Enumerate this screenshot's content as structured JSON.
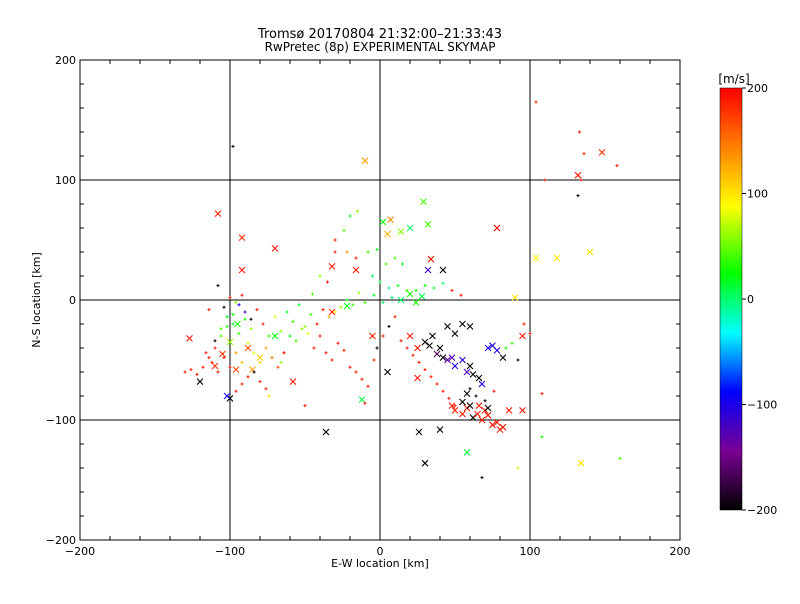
{
  "chart_data": {
    "type": "scatter",
    "title": "Tromsø 20170804 21:32:00–21:33:43",
    "subtitle": "RwPretec (8p) EXPERIMENTAL SKYMAP",
    "xlabel": "E-W location [km]",
    "ylabel": "N-S location [km]",
    "xlim": [
      -200,
      200
    ],
    "ylim": [
      -200,
      200
    ],
    "xticks": [
      -200,
      -100,
      0,
      100,
      200
    ],
    "yticks": [
      -200,
      -100,
      0,
      100,
      200
    ],
    "xtick_labels": [
      "−200",
      "−100",
      "0",
      "100",
      "200"
    ],
    "ytick_labels": [
      "−200",
      "−100",
      "0",
      "100",
      "200"
    ],
    "grid_lines": [
      -100,
      0,
      100
    ],
    "colorbar": {
      "label": "[m/s]",
      "range": [
        -200,
        200
      ],
      "ticks": [
        200,
        100,
        0,
        -100,
        -200
      ],
      "tick_labels": [
        "200",
        "100",
        "0",
        "−100",
        "−200"
      ],
      "colors": [
        "#000000",
        "#7a0094",
        "#0000ff",
        "#00ffff",
        "#00ff00",
        "#ffff00",
        "#ff8000",
        "#ff0000"
      ]
    },
    "series": [
      {
        "marker": "x",
        "points": [
          [
            -10,
            116,
            130
          ],
          [
            -108,
            72,
            190
          ],
          [
            -70,
            43,
            190
          ],
          [
            -92,
            52,
            180
          ],
          [
            -92,
            25,
            190
          ],
          [
            7,
            67,
            140
          ],
          [
            5,
            55,
            120
          ],
          [
            14,
            57,
            60
          ],
          [
            29,
            82,
            40
          ],
          [
            32,
            63,
            40
          ],
          [
            20,
            60,
            0
          ],
          [
            2,
            65,
            20
          ],
          [
            78,
            60,
            200
          ],
          [
            148,
            123,
            180
          ],
          [
            132,
            104,
            190
          ],
          [
            -120,
            -68,
            -200
          ],
          [
            -127,
            -32,
            190
          ],
          [
            -100,
            -82,
            -200
          ],
          [
            -102,
            -80,
            -100
          ],
          [
            -88,
            -40,
            170
          ],
          [
            -80,
            -48,
            110
          ],
          [
            -85,
            -58,
            130
          ],
          [
            -96,
            -58,
            170
          ],
          [
            -100,
            -35,
            60
          ],
          [
            -95,
            -20,
            30
          ],
          [
            -110,
            -55,
            180
          ],
          [
            -105,
            -45,
            180
          ],
          [
            -58,
            -68,
            190
          ],
          [
            -70,
            -30,
            20
          ],
          [
            -36,
            -110,
            -200
          ],
          [
            -12,
            -83,
            10
          ],
          [
            -5,
            -30,
            190
          ],
          [
            -22,
            -5,
            20
          ],
          [
            -32,
            -10,
            190
          ],
          [
            5,
            -60,
            -200
          ],
          [
            26,
            -110,
            -200
          ],
          [
            40,
            -108,
            -200
          ],
          [
            30,
            -136,
            -200
          ],
          [
            58,
            -127,
            10
          ],
          [
            134,
            -136,
            100
          ],
          [
            140,
            40,
            100
          ],
          [
            118,
            35,
            100
          ],
          [
            104,
            35,
            90
          ],
          [
            20,
            -30,
            190
          ],
          [
            25,
            -40,
            190
          ],
          [
            30,
            -35,
            -200
          ],
          [
            33,
            -38,
            -200
          ],
          [
            35,
            -30,
            -200
          ],
          [
            38,
            -45,
            -170
          ],
          [
            40,
            -40,
            -200
          ],
          [
            42,
            -48,
            -200
          ],
          [
            45,
            -50,
            -130
          ],
          [
            48,
            -48,
            -130
          ],
          [
            50,
            -55,
            -100
          ],
          [
            55,
            -50,
            -100
          ],
          [
            58,
            -60,
            -120
          ],
          [
            60,
            -55,
            -200
          ],
          [
            62,
            -62,
            -200
          ],
          [
            66,
            -65,
            -200
          ],
          [
            68,
            -70,
            -100
          ],
          [
            72,
            -40,
            -100
          ],
          [
            75,
            -38,
            -100
          ],
          [
            78,
            -42,
            -100
          ],
          [
            82,
            -48,
            -200
          ],
          [
            45,
            -22,
            -200
          ],
          [
            50,
            -28,
            -200
          ],
          [
            55,
            -20,
            -200
          ],
          [
            60,
            -22,
            -200
          ],
          [
            50,
            -92,
            190
          ],
          [
            55,
            -95,
            190
          ],
          [
            58,
            -90,
            190
          ],
          [
            62,
            -98,
            -200
          ],
          [
            65,
            -95,
            190
          ],
          [
            68,
            -100,
            190
          ],
          [
            70,
            -92,
            190
          ],
          [
            72,
            -96,
            190
          ],
          [
            75,
            -104,
            190
          ],
          [
            78,
            -102,
            190
          ],
          [
            80,
            -108,
            190
          ],
          [
            82,
            -106,
            190
          ],
          [
            66,
            -88,
            190
          ],
          [
            48,
            -88,
            190
          ],
          [
            55,
            -85,
            -200
          ],
          [
            72,
            -90,
            -200
          ],
          [
            86,
            -92,
            190
          ],
          [
            95,
            -92,
            190
          ],
          [
            60,
            -88,
            -200
          ],
          [
            58,
            -78,
            -200
          ],
          [
            95,
            -30,
            190
          ],
          [
            25,
            -65,
            190
          ],
          [
            90,
            2,
            100
          ],
          [
            42,
            25,
            -200
          ],
          [
            32,
            25,
            -120
          ],
          [
            34,
            34,
            190
          ],
          [
            14,
            0,
            0
          ],
          [
            28,
            3,
            10
          ],
          [
            20,
            5,
            30
          ],
          [
            24,
            -2,
            30
          ],
          [
            -16,
            25,
            190
          ],
          [
            -32,
            28,
            190
          ]
        ]
      },
      {
        "marker": "dot",
        "points": [
          [
            104,
            165,
            190
          ],
          [
            133,
            140,
            190
          ],
          [
            136,
            122,
            190
          ],
          [
            158,
            112,
            190
          ],
          [
            110,
            100,
            190
          ],
          [
            134,
            100,
            190
          ],
          [
            132,
            87,
            -200
          ],
          [
            -98,
            128,
            -200
          ],
          [
            -108,
            12,
            -200
          ],
          [
            -20,
            70,
            20
          ],
          [
            -15,
            74,
            60
          ],
          [
            -24,
            58,
            40
          ],
          [
            -30,
            50,
            190
          ],
          [
            -22,
            40,
            130
          ],
          [
            -16,
            35,
            190
          ],
          [
            -30,
            40,
            190
          ],
          [
            -45,
            5,
            40
          ],
          [
            -40,
            20,
            60
          ],
          [
            -35,
            15,
            190
          ],
          [
            -8,
            40,
            40
          ],
          [
            -2,
            42,
            20
          ],
          [
            4,
            30,
            40
          ],
          [
            10,
            35,
            40
          ],
          [
            15,
            30,
            20
          ],
          [
            -5,
            20,
            0
          ],
          [
            0,
            15,
            10
          ],
          [
            6,
            10,
            0
          ],
          [
            12,
            12,
            20
          ],
          [
            18,
            8,
            40
          ],
          [
            24,
            8,
            30
          ],
          [
            30,
            12,
            20
          ],
          [
            36,
            10,
            10
          ],
          [
            42,
            14,
            0
          ],
          [
            48,
            8,
            190
          ],
          [
            54,
            4,
            190
          ],
          [
            8,
            2,
            0
          ],
          [
            2,
            -2,
            0
          ],
          [
            -4,
            4,
            20
          ],
          [
            -10,
            -2,
            40
          ],
          [
            -14,
            6,
            60
          ],
          [
            -18,
            -4,
            40
          ],
          [
            -22,
            0,
            20
          ],
          [
            -26,
            -6,
            60
          ],
          [
            -30,
            -10,
            80
          ],
          [
            -34,
            -14,
            120
          ],
          [
            -38,
            -8,
            190
          ],
          [
            -42,
            -20,
            190
          ],
          [
            -46,
            -12,
            40
          ],
          [
            -50,
            -22,
            60
          ],
          [
            -54,
            -4,
            20
          ],
          [
            -58,
            -18,
            40
          ],
          [
            -62,
            -10,
            20
          ],
          [
            -66,
            -26,
            60
          ],
          [
            -70,
            -14,
            80
          ],
          [
            -74,
            -30,
            40
          ],
          [
            -78,
            -20,
            190
          ],
          [
            -82,
            -8,
            190
          ],
          [
            -86,
            -24,
            60
          ],
          [
            -90,
            -16,
            30
          ],
          [
            -94,
            -28,
            40
          ],
          [
            -98,
            -12,
            20
          ],
          [
            -102,
            -22,
            30
          ],
          [
            -106,
            -30,
            40
          ],
          [
            -110,
            -40,
            190
          ],
          [
            -114,
            -48,
            190
          ],
          [
            -118,
            -56,
            190
          ],
          [
            -122,
            -62,
            190
          ],
          [
            -126,
            -58,
            190
          ],
          [
            -130,
            -60,
            190
          ],
          [
            -116,
            -44,
            190
          ],
          [
            -112,
            -52,
            190
          ],
          [
            -108,
            -60,
            190
          ],
          [
            -104,
            -48,
            190
          ],
          [
            -100,
            -56,
            190
          ],
          [
            -96,
            -44,
            130
          ],
          [
            -92,
            -52,
            120
          ],
          [
            -88,
            -36,
            100
          ],
          [
            -84,
            -44,
            80
          ],
          [
            -80,
            -52,
            110
          ],
          [
            -76,
            -40,
            130
          ],
          [
            -72,
            -48,
            150
          ],
          [
            -68,
            -56,
            170
          ],
          [
            -64,
            -44,
            190
          ],
          [
            -88,
            -64,
            190
          ],
          [
            -92,
            -70,
            190
          ],
          [
            -96,
            -76,
            190
          ],
          [
            -84,
            -60,
            -200
          ],
          [
            -80,
            -68,
            190
          ],
          [
            -76,
            -74,
            190
          ],
          [
            -104,
            -6,
            -200
          ],
          [
            -100,
            2,
            190
          ],
          [
            -96,
            -2,
            60
          ],
          [
            -92,
            4,
            190
          ],
          [
            -44,
            -40,
            190
          ],
          [
            -40,
            -30,
            190
          ],
          [
            -36,
            -44,
            190
          ],
          [
            -32,
            -50,
            190
          ],
          [
            -28,
            -36,
            190
          ],
          [
            -24,
            -42,
            190
          ],
          [
            -20,
            -56,
            190
          ],
          [
            -16,
            -60,
            190
          ],
          [
            -12,
            -66,
            190
          ],
          [
            -8,
            -72,
            190
          ],
          [
            -4,
            -50,
            190
          ],
          [
            -2,
            -40,
            -200
          ],
          [
            2,
            -30,
            190
          ],
          [
            6,
            -22,
            -200
          ],
          [
            10,
            -14,
            190
          ],
          [
            14,
            -34,
            190
          ],
          [
            18,
            -40,
            190
          ],
          [
            22,
            -46,
            190
          ],
          [
            26,
            -52,
            190
          ],
          [
            30,
            -58,
            190
          ],
          [
            34,
            -64,
            190
          ],
          [
            38,
            -70,
            190
          ],
          [
            42,
            -76,
            190
          ],
          [
            46,
            -82,
            190
          ],
          [
            50,
            -88,
            190
          ],
          [
            60,
            -74,
            -200
          ],
          [
            64,
            -80,
            -200
          ],
          [
            70,
            -84,
            -200
          ],
          [
            76,
            -76,
            190
          ],
          [
            84,
            -40,
            20
          ],
          [
            88,
            -36,
            40
          ],
          [
            92,
            -50,
            -200
          ],
          [
            96,
            -20,
            190
          ],
          [
            100,
            -28,
            190
          ],
          [
            108,
            -78,
            190
          ],
          [
            108,
            -114,
            30
          ],
          [
            160,
            -132,
            40
          ],
          [
            92,
            -140,
            80
          ],
          [
            68,
            -148,
            -200
          ],
          [
            -10,
            -86,
            190
          ],
          [
            -50,
            -88,
            190
          ],
          [
            -64,
            -44,
            190
          ],
          [
            -60,
            -30,
            20
          ],
          [
            -56,
            -34,
            40
          ],
          [
            -52,
            -24,
            60
          ],
          [
            -48,
            -28,
            80
          ],
          [
            -66,
            -52,
            60
          ],
          [
            -74,
            -80,
            100
          ],
          [
            -86,
            -16,
            -200
          ],
          [
            -90,
            -10,
            -120
          ],
          [
            -94,
            -4,
            -100
          ],
          [
            -98,
            -20,
            10
          ],
          [
            -102,
            -14,
            20
          ],
          [
            -106,
            -24,
            40
          ],
          [
            -110,
            -34,
            -200
          ],
          [
            -114,
            -8,
            190
          ]
        ]
      }
    ]
  }
}
